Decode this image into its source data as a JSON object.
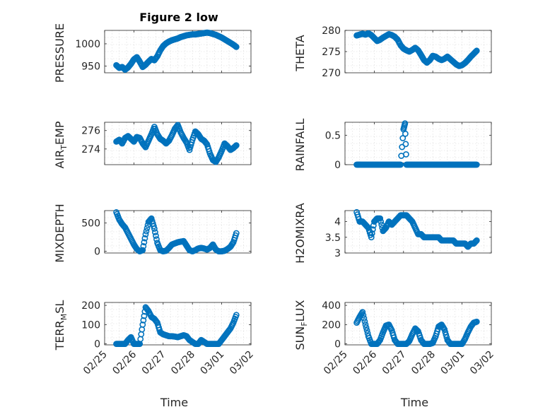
{
  "title": "Figure 2 low",
  "marker_color": "#0072BD",
  "chart_data": [
    {
      "type": "scatter",
      "ylabel": "PRESSURE",
      "xlim": [
        "02/25",
        "03/02"
      ],
      "ylim": [
        935,
        1030
      ],
      "yticks": [
        "950",
        "1000"
      ],
      "xticks": [
        "02/25",
        "02/26",
        "02/27",
        "02/28",
        "03/01",
        "03/02"
      ],
      "show_xticklabels": false,
      "xlabel": "",
      "grid": true,
      "x": [
        0.4,
        0.5,
        0.6,
        0.7,
        0.8,
        0.9,
        1.0,
        1.1,
        1.2,
        1.3,
        1.4,
        1.5,
        1.6,
        1.7,
        1.8,
        1.9,
        2.0,
        2.1,
        2.2,
        2.3,
        2.4,
        2.5,
        2.6,
        2.7,
        2.8,
        2.9,
        3.0,
        3.1,
        3.2,
        3.3,
        3.4,
        3.5,
        3.6,
        3.7,
        3.8,
        3.9,
        4.0,
        4.1,
        4.2,
        4.3,
        4.4,
        4.5
      ],
      "y": [
        952,
        946,
        948,
        942,
        947,
        955,
        965,
        970,
        960,
        948,
        953,
        960,
        966,
        963,
        972,
        985,
        995,
        1001,
        1005,
        1008,
        1010,
        1012,
        1015,
        1017,
        1019,
        1020,
        1021,
        1021,
        1022,
        1023,
        1024,
        1025,
        1024,
        1022,
        1020,
        1017,
        1014,
        1010,
        1006,
        1002,
        998,
        993
      ]
    },
    {
      "type": "scatter",
      "ylabel": "THETA",
      "xlim": [
        "02/25",
        "03/02"
      ],
      "ylim": [
        270,
        280
      ],
      "yticks": [
        "270",
        "275",
        "280"
      ],
      "xticks": [
        "02/25",
        "02/26",
        "02/27",
        "02/28",
        "03/01",
        "03/02"
      ],
      "show_xticklabels": false,
      "xlabel": "",
      "grid": true,
      "x": [
        0.4,
        0.5,
        0.6,
        0.7,
        0.8,
        0.9,
        1.0,
        1.1,
        1.2,
        1.3,
        1.4,
        1.5,
        1.6,
        1.7,
        1.8,
        1.9,
        2.0,
        2.1,
        2.2,
        2.3,
        2.4,
        2.5,
        2.6,
        2.7,
        2.8,
        2.9,
        3.0,
        3.1,
        3.2,
        3.3,
        3.4,
        3.5,
        3.6,
        3.7,
        3.8,
        3.9,
        4.0,
        4.1,
        4.2,
        4.3,
        4.4,
        4.5
      ],
      "y": [
        278.8,
        279.0,
        279.2,
        279.0,
        279.3,
        278.9,
        278.2,
        277.5,
        277.8,
        278.3,
        278.7,
        279.1,
        278.9,
        278.5,
        277.8,
        276.5,
        275.7,
        275.3,
        275.0,
        275.4,
        275.9,
        275.3,
        274.2,
        273.0,
        272.4,
        273.0,
        274.0,
        273.8,
        273.3,
        273.0,
        273.3,
        273.8,
        273.2,
        272.6,
        272.0,
        271.6,
        271.8,
        272.3,
        273.0,
        273.8,
        274.5,
        275.2
      ]
    },
    {
      "type": "scatter",
      "ylabel": "AIR_TEMP",
      "xlim": [
        "02/25",
        "03/02"
      ],
      "ylim": [
        272.3,
        276.9
      ],
      "yticks": [
        "274",
        "276"
      ],
      "xticks": [
        "02/25",
        "02/26",
        "02/27",
        "02/28",
        "03/01",
        "03/02"
      ],
      "show_xticklabels": false,
      "xlabel": "",
      "grid": true,
      "x": [
        0.4,
        0.5,
        0.6,
        0.7,
        0.8,
        0.9,
        1.0,
        1.1,
        1.2,
        1.3,
        1.4,
        1.5,
        1.6,
        1.7,
        1.8,
        1.9,
        2.0,
        2.1,
        2.2,
        2.3,
        2.4,
        2.5,
        2.6,
        2.7,
        2.8,
        2.9,
        3.0,
        3.1,
        3.2,
        3.3,
        3.4,
        3.5,
        3.6,
        3.7,
        3.8,
        3.9,
        4.0,
        4.1,
        4.2,
        4.3,
        4.4,
        4.5
      ],
      "y": [
        274.8,
        275.0,
        274.6,
        275.2,
        275.4,
        275.1,
        274.8,
        275.3,
        275.2,
        274.6,
        274.2,
        274.9,
        275.6,
        276.4,
        275.6,
        275.1,
        274.9,
        274.6,
        274.9,
        275.5,
        276.2,
        276.6,
        275.8,
        275.2,
        274.7,
        273.9,
        275.0,
        275.9,
        275.6,
        275.1,
        274.9,
        274.5,
        273.5,
        272.8,
        272.6,
        273.1,
        273.8,
        274.6,
        274.3,
        273.9,
        274.1,
        274.4
      ]
    },
    {
      "type": "scatter",
      "ylabel": "RAINFALL",
      "xlim": [
        "02/25",
        "03/02"
      ],
      "ylim": [
        0,
        0.72
      ],
      "yticks": [
        "0",
        "0.5"
      ],
      "xticks": [
        "02/25",
        "02/26",
        "02/27",
        "02/28",
        "03/01",
        "03/02"
      ],
      "show_xticklabels": false,
      "xlabel": "",
      "grid": true,
      "x": [
        0.4,
        0.5,
        0.6,
        0.7,
        0.8,
        0.9,
        1.0,
        1.1,
        1.2,
        1.3,
        1.4,
        1.5,
        1.6,
        1.7,
        1.8,
        1.9,
        2.0,
        2.05,
        2.1,
        2.2,
        2.3,
        2.4,
        2.5,
        2.6,
        2.7,
        2.8,
        2.9,
        3.0,
        3.1,
        3.2,
        3.3,
        3.4,
        3.5,
        3.6,
        3.7,
        3.8,
        3.9,
        4.0,
        4.1,
        4.2,
        4.3,
        4.4,
        4.5
      ],
      "y": [
        0,
        0,
        0,
        0,
        0,
        0,
        0,
        0,
        0,
        0,
        0,
        0,
        0,
        0,
        0,
        0,
        0.6,
        0.7,
        0,
        0,
        0,
        0,
        0,
        0,
        0,
        0,
        0,
        0,
        0,
        0,
        0,
        0,
        0,
        0,
        0,
        0,
        0,
        0,
        0,
        0,
        0,
        0,
        0
      ]
    },
    {
      "type": "scatter",
      "ylabel": "MIXDEPTH",
      "xlim": [
        "02/25",
        "03/02"
      ],
      "ylim": [
        -30,
        720
      ],
      "yticks": [
        "0",
        "500"
      ],
      "xticks": [
        "02/25",
        "02/26",
        "02/27",
        "02/28",
        "03/01",
        "03/02"
      ],
      "show_xticklabels": false,
      "xlabel": "",
      "grid": true,
      "x": [
        0.4,
        0.5,
        0.6,
        0.7,
        0.8,
        0.9,
        1.0,
        1.1,
        1.2,
        1.3,
        1.4,
        1.5,
        1.6,
        1.7,
        1.8,
        1.9,
        2.0,
        2.1,
        2.2,
        2.3,
        2.4,
        2.5,
        2.6,
        2.7,
        2.8,
        2.9,
        3.0,
        3.1,
        3.2,
        3.3,
        3.4,
        3.5,
        3.6,
        3.7,
        3.8,
        3.9,
        4.0,
        4.1,
        4.2,
        4.3,
        4.4,
        4.5
      ],
      "y": [
        690,
        560,
        480,
        420,
        320,
        220,
        120,
        40,
        0,
        20,
        300,
        520,
        580,
        400,
        150,
        20,
        0,
        10,
        60,
        120,
        140,
        160,
        170,
        180,
        100,
        20,
        0,
        20,
        50,
        60,
        50,
        30,
        60,
        120,
        30,
        0,
        0,
        10,
        40,
        80,
        160,
        320
      ]
    },
    {
      "type": "scatter",
      "ylabel": "H2OMIXRA",
      "xlim": [
        "02/25",
        "03/02"
      ],
      "ylim": [
        3,
        4.35
      ],
      "yticks": [
        "3",
        "3.5",
        "4"
      ],
      "xticks": [
        "02/25",
        "02/26",
        "02/27",
        "02/28",
        "03/01",
        "03/02"
      ],
      "show_xticklabels": false,
      "xlabel": "",
      "grid": true,
      "x": [
        0.4,
        0.5,
        0.6,
        0.7,
        0.8,
        0.9,
        1.0,
        1.1,
        1.2,
        1.3,
        1.4,
        1.5,
        1.6,
        1.7,
        1.8,
        1.9,
        2.0,
        2.1,
        2.2,
        2.3,
        2.4,
        2.5,
        2.6,
        2.7,
        2.8,
        2.9,
        3.0,
        3.1,
        3.2,
        3.3,
        3.4,
        3.5,
        3.6,
        3.7,
        3.8,
        3.9,
        4.0,
        4.1,
        4.2,
        4.3,
        4.4,
        4.5
      ],
      "y": [
        4.3,
        4.0,
        4.0,
        3.9,
        3.8,
        3.5,
        4.0,
        4.1,
        4.1,
        3.7,
        3.8,
        4.0,
        3.9,
        4.0,
        4.1,
        4.2,
        4.2,
        4.2,
        4.1,
        4.0,
        3.8,
        3.6,
        3.6,
        3.5,
        3.5,
        3.5,
        3.5,
        3.5,
        3.5,
        3.4,
        3.4,
        3.4,
        3.4,
        3.4,
        3.3,
        3.3,
        3.3,
        3.3,
        3.2,
        3.3,
        3.3,
        3.4
      ]
    },
    {
      "type": "scatter",
      "ylabel": "TERR_MSL",
      "xlim": [
        "02/25",
        "03/02"
      ],
      "ylim": [
        -5,
        215
      ],
      "yticks": [
        "0",
        "100",
        "200"
      ],
      "xticks": [
        "02/25",
        "02/26",
        "02/27",
        "02/28",
        "03/01",
        "03/02"
      ],
      "show_xticklabels": true,
      "xlabel": "Time",
      "grid": true,
      "x": [
        0.4,
        0.5,
        0.6,
        0.7,
        0.8,
        0.9,
        1.0,
        1.1,
        1.2,
        1.3,
        1.4,
        1.5,
        1.6,
        1.7,
        1.8,
        1.9,
        2.0,
        2.1,
        2.2,
        2.3,
        2.4,
        2.5,
        2.6,
        2.7,
        2.8,
        2.9,
        3.0,
        3.1,
        3.2,
        3.3,
        3.4,
        3.5,
        3.6,
        3.7,
        3.8,
        3.9,
        4.0,
        4.1,
        4.2,
        4.3,
        4.4,
        4.5
      ],
      "y": [
        0,
        0,
        0,
        0,
        20,
        35,
        0,
        0,
        0,
        100,
        190,
        170,
        140,
        130,
        110,
        60,
        50,
        45,
        40,
        40,
        38,
        35,
        40,
        45,
        40,
        20,
        10,
        0,
        0,
        20,
        10,
        0,
        0,
        0,
        0,
        0,
        20,
        40,
        60,
        80,
        110,
        150
      ]
    },
    {
      "type": "scatter",
      "ylabel": "SUN_FLUX",
      "xlim": [
        "02/25",
        "03/02"
      ],
      "ylim": [
        -10,
        430
      ],
      "yticks": [
        "0",
        "200",
        "400"
      ],
      "xticks": [
        "02/25",
        "02/26",
        "02/27",
        "02/28",
        "03/01",
        "03/02"
      ],
      "show_xticklabels": true,
      "xlabel": "Time",
      "grid": true,
      "x": [
        0.4,
        0.5,
        0.6,
        0.7,
        0.8,
        0.9,
        1.0,
        1.1,
        1.2,
        1.3,
        1.4,
        1.5,
        1.6,
        1.7,
        1.8,
        1.9,
        2.0,
        2.1,
        2.2,
        2.3,
        2.4,
        2.5,
        2.6,
        2.7,
        2.8,
        2.9,
        3.0,
        3.1,
        3.2,
        3.3,
        3.4,
        3.5,
        3.6,
        3.7,
        3.8,
        3.9,
        4.0,
        4.1,
        4.2,
        4.3,
        4.4,
        4.5
      ],
      "y": [
        220,
        280,
        330,
        200,
        80,
        0,
        0,
        0,
        40,
        120,
        190,
        200,
        140,
        40,
        0,
        0,
        0,
        0,
        30,
        100,
        160,
        130,
        40,
        0,
        0,
        0,
        10,
        80,
        180,
        200,
        150,
        40,
        0,
        0,
        0,
        0,
        0,
        50,
        120,
        180,
        220,
        230
      ]
    }
  ]
}
